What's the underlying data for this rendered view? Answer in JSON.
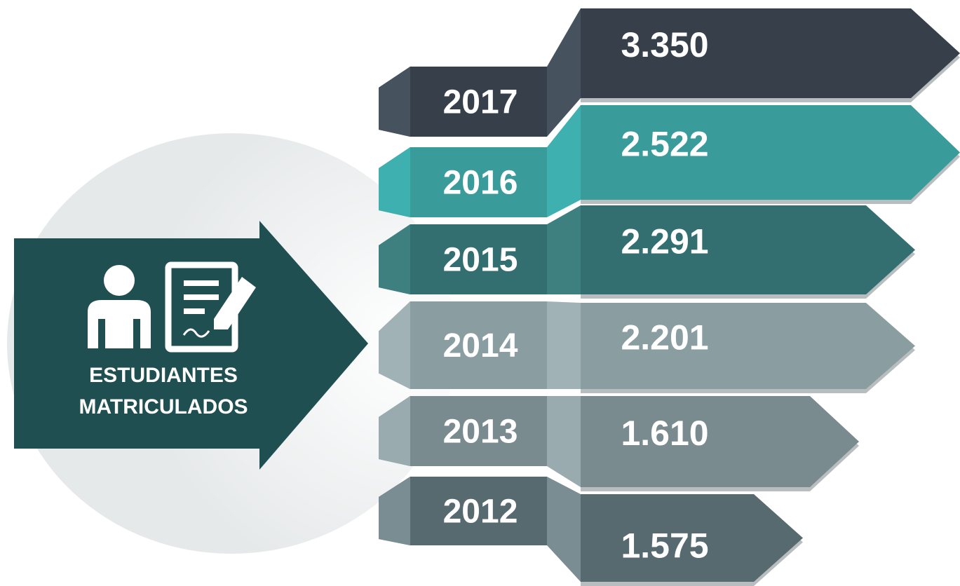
{
  "heading": {
    "lines": [
      "ESTUDIANTES",
      "MATRICULADOS"
    ]
  },
  "items": [
    {
      "year": "2017",
      "value": "3.350"
    },
    {
      "year": "2016",
      "value": "2.522"
    },
    {
      "year": "2015",
      "value": "2.291"
    },
    {
      "year": "2014",
      "value": "2.201"
    },
    {
      "year": "2013",
      "value": "1.610"
    },
    {
      "year": "2012",
      "value": "1.575"
    }
  ]
}
